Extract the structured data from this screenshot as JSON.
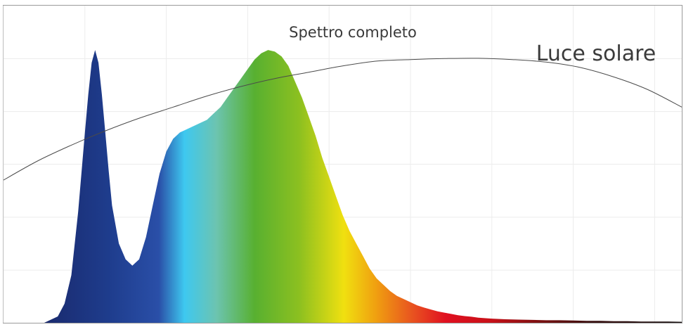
{
  "chart_data": {
    "type": "area",
    "title": "Spettro completo",
    "grid": true,
    "xlim": [
      0,
      100
    ],
    "ylim": [
      0,
      100
    ],
    "gradient_colors": [
      {
        "t": 0.0,
        "color": "#1a2a6e"
      },
      {
        "t": 0.1,
        "color": "#1e3c8c"
      },
      {
        "t": 0.18,
        "color": "#2a4fa8"
      },
      {
        "t": 0.22,
        "color": "#3ec8f0"
      },
      {
        "t": 0.27,
        "color": "#6cc4b0"
      },
      {
        "t": 0.33,
        "color": "#58b030"
      },
      {
        "t": 0.4,
        "color": "#8cc020"
      },
      {
        "t": 0.47,
        "color": "#f0e010"
      },
      {
        "t": 0.52,
        "color": "#f0a010"
      },
      {
        "t": 0.58,
        "color": "#e85020"
      },
      {
        "t": 0.63,
        "color": "#e01020"
      },
      {
        "t": 0.7,
        "color": "#c81018"
      },
      {
        "t": 0.78,
        "color": "#781010"
      },
      {
        "t": 0.86,
        "color": "#381010"
      },
      {
        "t": 1.0,
        "color": "#181010"
      }
    ],
    "series": [
      {
        "name": "Spettro completo",
        "x": [
          6,
          8,
          9,
          10,
          11,
          12,
          12.5,
          13,
          13.5,
          14,
          14.5,
          15,
          15.5,
          16,
          17,
          18,
          19,
          20,
          21,
          22,
          23,
          24,
          25,
          26,
          27,
          28,
          29,
          30,
          31,
          32,
          33,
          34,
          35,
          36,
          37,
          38,
          39,
          40,
          41,
          42,
          43,
          44,
          45,
          46,
          47,
          48,
          49,
          50,
          51,
          52,
          53,
          54,
          55,
          56,
          57,
          58,
          59,
          60,
          61,
          62,
          63,
          64,
          65,
          66,
          67,
          68,
          69,
          70,
          72,
          74,
          76,
          78,
          80,
          82,
          84,
          86,
          88,
          90,
          92,
          94,
          96,
          98,
          100
        ],
        "y": [
          0,
          2,
          6,
          15,
          35,
          60,
          72,
          82,
          86,
          82,
          72,
          60,
          48,
          37,
          25,
          20,
          18,
          20,
          27,
          37,
          47,
          54,
          58,
          60,
          61,
          62,
          63,
          64,
          66,
          68,
          71,
          74,
          77,
          80,
          83,
          85,
          86,
          85.5,
          84,
          81,
          76,
          71,
          65,
          59,
          52,
          46,
          40,
          34,
          29,
          25,
          21,
          17,
          14,
          12,
          10,
          8.5,
          7.5,
          6.5,
          5.5,
          4.8,
          4.2,
          3.6,
          3.2,
          2.8,
          2.4,
          2.1,
          1.9,
          1.6,
          1.3,
          1.1,
          1,
          0.9,
          0.8,
          0.8,
          0.7,
          0.6,
          0.6,
          0.5,
          0.5,
          0.4,
          0.4,
          0.4,
          0.3
        ]
      },
      {
        "name": "Luce solare",
        "x": [
          0,
          5,
          10,
          15,
          20,
          25,
          30,
          35,
          40,
          45,
          50,
          55,
          60,
          65,
          70,
          75,
          80,
          85,
          90,
          95,
          100
        ],
        "y": [
          45,
          51,
          56,
          60.5,
          64.5,
          68,
          71.5,
          74.5,
          77,
          79,
          81,
          82.5,
          83,
          83.3,
          83.4,
          83,
          82.2,
          80.5,
          77.5,
          73.5,
          68
        ]
      }
    ]
  }
}
